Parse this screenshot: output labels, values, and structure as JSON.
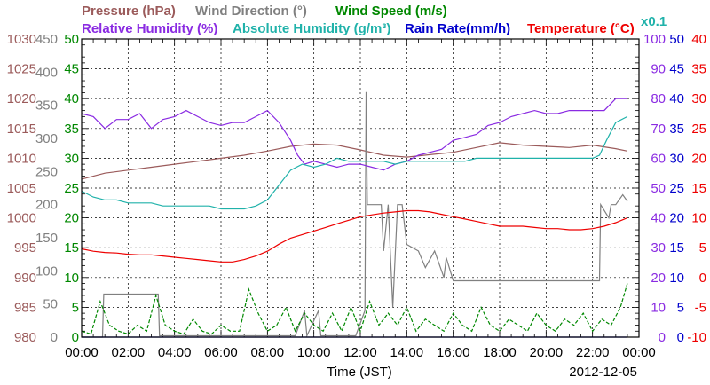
{
  "header": {
    "row1": [
      {
        "text": "Pressure (hPa)",
        "color": "#9b5b5b"
      },
      {
        "text": "Wind Direction (°)",
        "color": "#808080"
      },
      {
        "text": "Wind Speed (m/s)",
        "color": "#008800"
      }
    ],
    "row2": [
      {
        "text": "Relative Humidity (%)",
        "color": "#8a2be2"
      },
      {
        "text": "Absolute Humidity (g/m³)",
        "color": "#20b2aa"
      },
      {
        "text": "Rain Rate(mm/h)",
        "color": "#0000cc"
      },
      {
        "text": "Temperature (°C)",
        "color": "#ee0000"
      }
    ],
    "scale_note": {
      "text": "x0.1",
      "color": "#20b2aa"
    }
  },
  "xaxis": {
    "title": "Time (JST)",
    "date": "2012-12-05",
    "ticks": [
      "00:00",
      "02:00",
      "04:00",
      "06:00",
      "08:00",
      "10:00",
      "12:00",
      "14:00",
      "16:00",
      "18:00",
      "20:00",
      "22:00",
      "00:00"
    ]
  },
  "chart_data": {
    "type": "line",
    "x_range_hours": [
      0,
      24
    ],
    "grid": true,
    "left_axes": [
      {
        "name": "pressure",
        "color": "#9b5b5b",
        "ticks": [
          "1030",
          "1025",
          "1020",
          "1015",
          "1010",
          "1005",
          "1000",
          "995",
          "990",
          "985",
          "980"
        ]
      },
      {
        "name": "wind_direction",
        "color": "#808080",
        "ticks": [
          "450",
          "400",
          "350",
          "300",
          "250",
          "200",
          "150",
          "100",
          "50",
          "0"
        ]
      },
      {
        "name": "wind_speed",
        "color": "#008800",
        "ticks": [
          "50",
          "45",
          "40",
          "35",
          "30",
          "25",
          "20",
          "15",
          "10",
          "5",
          "0"
        ]
      }
    ],
    "right_axes": [
      {
        "name": "humidity",
        "color": "#8a2be2",
        "ticks": [
          "100",
          "90",
          "80",
          "70",
          "60",
          "50",
          "40",
          "30",
          "20",
          "10",
          "0"
        ]
      },
      {
        "name": "rain_rate",
        "color": "#0000cc",
        "ticks": [
          "50",
          "45",
          "40",
          "35",
          "30",
          "25",
          "20",
          "15",
          "10",
          "5",
          "0"
        ]
      },
      {
        "name": "temperature",
        "color": "#ee0000",
        "ticks": [
          "40",
          "35",
          "30",
          "25",
          "20",
          "15",
          "10",
          "5",
          "0",
          "-5",
          "-10"
        ]
      }
    ],
    "series": [
      {
        "name": "Pressure (hPa)",
        "color": "#9b5b5b",
        "axis_min": 980,
        "axis_max": 1030,
        "style": "solid",
        "x": [
          0,
          1,
          2,
          3,
          4,
          5,
          6,
          7,
          8,
          9,
          10,
          11,
          12,
          13,
          14,
          15,
          16,
          17,
          18,
          19,
          20,
          21,
          22,
          23,
          23.5
        ],
        "y": [
          1006.5,
          1007.5,
          1008,
          1008.5,
          1009,
          1009.5,
          1010,
          1010.5,
          1011.2,
          1012,
          1012.4,
          1012.2,
          1011.4,
          1010.5,
          1010.2,
          1010.6,
          1011,
          1011.8,
          1012.6,
          1012.2,
          1012,
          1011.8,
          1012.2,
          1011.6,
          1011.2
        ]
      },
      {
        "name": "Wind Direction (°)",
        "color": "#808080",
        "axis_min": 0,
        "axis_max": 450,
        "style": "solid",
        "x": [
          0,
          0.9,
          0.95,
          3.3,
          3.35,
          9.2,
          9.6,
          9.7,
          10.2,
          10.3,
          11.4,
          11.8,
          12.2,
          12.25,
          12.3,
          12.9,
          13.0,
          13.2,
          13.4,
          13.6,
          13.8,
          14.0,
          14.5,
          14.8,
          15.2,
          15.6,
          15.7,
          16.0,
          22.3,
          22.35,
          22.7,
          22.8,
          23.0,
          23.3,
          23.5
        ],
        "y": [
          0,
          0,
          65,
          65,
          2,
          2,
          40,
          2,
          40,
          2,
          2,
          2,
          40,
          370,
          200,
          200,
          130,
          200,
          45,
          200,
          200,
          140,
          130,
          105,
          130,
          90,
          120,
          85,
          85,
          200,
          180,
          200,
          200,
          215,
          205
        ]
      },
      {
        "name": "Wind Speed (m/s)",
        "color": "#008800",
        "axis_min": 0,
        "axis_max": 50,
        "style": "dashed",
        "x": [
          0,
          0.4,
          0.8,
          1.2,
          1.6,
          2.0,
          2.4,
          2.8,
          3.2,
          3.6,
          4.0,
          4.4,
          4.8,
          5.2,
          5.6,
          6.0,
          6.4,
          6.8,
          7.2,
          7.6,
          8.0,
          8.4,
          8.8,
          9.2,
          9.6,
          10.0,
          10.4,
          10.8,
          11.2,
          11.6,
          12.0,
          12.4,
          12.8,
          13.2,
          13.6,
          14.0,
          14.4,
          14.8,
          15.2,
          15.6,
          16.0,
          16.4,
          16.8,
          17.2,
          17.6,
          18.0,
          18.4,
          18.8,
          19.2,
          19.6,
          20.0,
          20.4,
          20.8,
          21.2,
          21.6,
          22.0,
          22.4,
          22.8,
          23.2,
          23.5
        ],
        "y": [
          1,
          0.5,
          6,
          2,
          1,
          0.5,
          2,
          1,
          7,
          2,
          1,
          0.5,
          3,
          1,
          0.5,
          2,
          1,
          1,
          8,
          4,
          1,
          2,
          5,
          1,
          4,
          2,
          1,
          4,
          1,
          5,
          1,
          6,
          2,
          4,
          2,
          5,
          1,
          3,
          2,
          1,
          4,
          2,
          1,
          5,
          2,
          1,
          3,
          2,
          1,
          4,
          2,
          1,
          3,
          2,
          4,
          1,
          3,
          2,
          5,
          9
        ]
      },
      {
        "name": "Relative Humidity (%)",
        "color": "#8a2be2",
        "axis_min": 0,
        "axis_max": 100,
        "style": "solid",
        "x": [
          0,
          0.5,
          1,
          1.5,
          2,
          2.5,
          3,
          3.5,
          4,
          4.5,
          5,
          5.5,
          6,
          6.5,
          7,
          7.5,
          8,
          8.5,
          9,
          9.3,
          9.6,
          10,
          10.5,
          11,
          11.5,
          12,
          12.5,
          13,
          13.5,
          14,
          14.5,
          15,
          15.5,
          16,
          16.5,
          17,
          17.5,
          18,
          18.5,
          19,
          19.5,
          20,
          20.5,
          21,
          21.5,
          22,
          22.5,
          23,
          23.5
        ],
        "y": [
          75,
          74,
          70,
          73,
          73,
          75,
          70,
          73,
          74,
          76,
          74,
          72,
          71,
          72,
          72,
          74,
          76,
          72,
          66,
          61,
          58,
          59,
          58,
          57,
          58,
          58,
          57,
          56,
          58,
          59,
          61,
          62,
          63,
          66,
          67,
          68,
          71,
          72,
          74,
          75,
          76,
          75,
          75,
          76,
          76,
          76,
          76,
          80,
          80
        ]
      },
      {
        "name": "Absolute Humidity (g/m³)",
        "color": "#20b2aa",
        "axis_min": 0,
        "axis_max": 100,
        "style": "solid",
        "x": [
          0,
          0.5,
          1,
          1.5,
          2,
          2.5,
          3,
          3.5,
          4,
          4.5,
          5,
          5.5,
          6,
          6.5,
          7,
          7.5,
          8,
          8.5,
          9,
          9.5,
          10,
          10.5,
          11,
          11.5,
          12,
          12.5,
          13,
          13.5,
          14,
          14.5,
          15,
          15.5,
          16,
          16.5,
          17,
          17.5,
          18,
          18.5,
          19,
          19.5,
          20,
          20.5,
          21,
          21.5,
          22,
          22.3,
          22.6,
          23,
          23.5
        ],
        "y": [
          49,
          47,
          46,
          46,
          45,
          45,
          45,
          44,
          44,
          44,
          44,
          44,
          43,
          43,
          43,
          44,
          46,
          51,
          56,
          58,
          57,
          58,
          60,
          59,
          59,
          59,
          59,
          58,
          59,
          59,
          59,
          59,
          59,
          59,
          60,
          60,
          60,
          60,
          60,
          60,
          60,
          60,
          60,
          60,
          60,
          61,
          66,
          72,
          74
        ]
      },
      {
        "name": "Rain Rate(mm/h)",
        "color": "#0000cc",
        "axis_min": 0,
        "axis_max": 50,
        "style": "solid",
        "x": [
          0,
          23.5
        ],
        "y": [
          0,
          0
        ]
      },
      {
        "name": "Temperature (°C)",
        "color": "#ee0000",
        "axis_min": -10,
        "axis_max": 40,
        "style": "solid",
        "x": [
          0,
          0.5,
          1,
          1.5,
          2,
          2.5,
          3,
          3.5,
          4,
          4.5,
          5,
          5.5,
          6,
          6.5,
          7,
          7.5,
          8,
          8.5,
          9,
          9.5,
          10,
          10.5,
          11,
          11.5,
          12,
          12.5,
          13,
          13.5,
          14,
          14.5,
          15,
          15.5,
          16,
          16.5,
          17,
          17.5,
          18,
          18.5,
          19,
          19.5,
          20,
          20.5,
          21,
          21.5,
          22,
          22.5,
          23,
          23.5
        ],
        "y": [
          4.8,
          4.4,
          4.2,
          4.1,
          3.9,
          3.8,
          3.8,
          3.6,
          3.4,
          3.2,
          3.0,
          2.8,
          2.6,
          2.6,
          3.0,
          3.6,
          4.4,
          5.6,
          6.6,
          7.2,
          7.8,
          8.4,
          9.0,
          9.6,
          10.2,
          10.5,
          10.8,
          11.0,
          11.2,
          11.2,
          11.0,
          10.6,
          10.2,
          9.8,
          9.4,
          9.0,
          8.6,
          8.6,
          8.6,
          8.4,
          8.2,
          8.2,
          8.0,
          8.0,
          8.2,
          8.6,
          9.2,
          10.0
        ]
      }
    ]
  }
}
